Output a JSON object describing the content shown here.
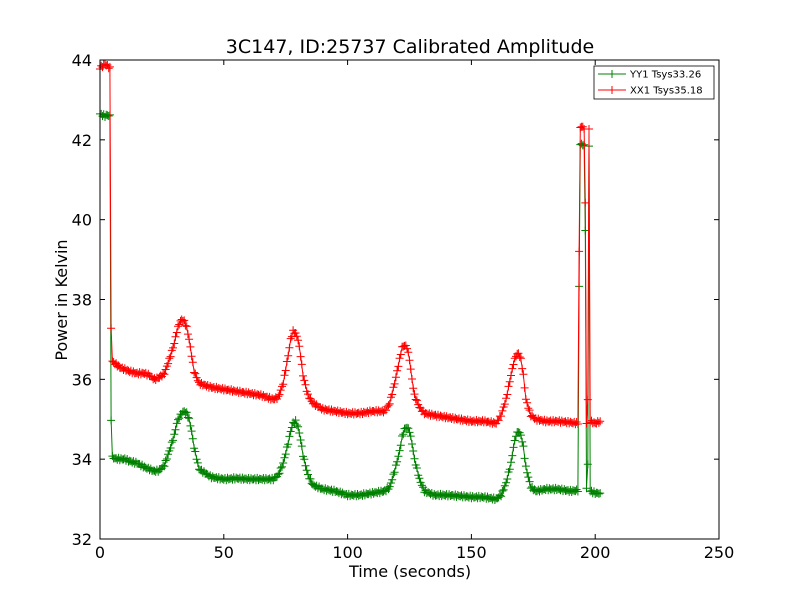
{
  "chart_data": {
    "type": "line",
    "title": "3C147, ID:25737 Calibrated Amplitude",
    "xlabel": "Time (seconds)",
    "ylabel": "Power in Kelvin",
    "xlim": [
      0,
      250
    ],
    "ylim": [
      32,
      44
    ],
    "xticks": [
      0,
      50,
      100,
      150,
      200,
      250
    ],
    "yticks": [
      32,
      34,
      36,
      38,
      40,
      42,
      44
    ],
    "grid": false,
    "legend_position": "top-right",
    "marker": "+",
    "series": [
      {
        "name": "YY1 Tsys33.26",
        "color": "#008000",
        "x": [
          0,
          1,
          2,
          3,
          4,
          4.5,
          5,
          6,
          8,
          10,
          12,
          15,
          18,
          20,
          22,
          24,
          26,
          28,
          30,
          31,
          32,
          33,
          34,
          35,
          36,
          37,
          38,
          40,
          45,
          50,
          55,
          60,
          65,
          70,
          72,
          74,
          76,
          77,
          78,
          79,
          80,
          81,
          82,
          84,
          86,
          90,
          95,
          100,
          105,
          110,
          115,
          117,
          119,
          121,
          122,
          123,
          124,
          125,
          126,
          127,
          129,
          131,
          135,
          140,
          145,
          150,
          155,
          160,
          162,
          164,
          166,
          167,
          168,
          169,
          170,
          171,
          172,
          174,
          176,
          180,
          185,
          190,
          193,
          193.5,
          194,
          194.5,
          195,
          195.5,
          196,
          196.5,
          197,
          197.5,
          198,
          200,
          202
        ],
        "y": [
          42.65,
          42.62,
          42.6,
          42.62,
          42.6,
          35.0,
          34.05,
          34.02,
          34.0,
          34.0,
          33.95,
          33.9,
          33.8,
          33.75,
          33.7,
          33.72,
          33.85,
          34.2,
          34.6,
          34.9,
          35.05,
          35.15,
          35.2,
          35.15,
          35.0,
          34.7,
          34.3,
          33.75,
          33.55,
          33.5,
          33.52,
          33.5,
          33.5,
          33.5,
          33.6,
          33.9,
          34.4,
          34.7,
          34.9,
          34.95,
          34.8,
          34.5,
          34.1,
          33.6,
          33.35,
          33.25,
          33.2,
          33.1,
          33.1,
          33.15,
          33.2,
          33.3,
          33.7,
          34.2,
          34.55,
          34.75,
          34.8,
          34.7,
          34.4,
          34.0,
          33.5,
          33.2,
          33.1,
          33.1,
          33.08,
          33.05,
          33.05,
          33.0,
          33.1,
          33.4,
          33.9,
          34.3,
          34.6,
          34.7,
          34.6,
          34.3,
          33.8,
          33.3,
          33.2,
          33.25,
          33.25,
          33.2,
          33.22,
          38.3,
          41.9,
          41.9,
          41.85,
          41.9,
          39.7,
          33.3,
          33.85,
          41.85,
          33.2,
          33.15,
          33.15
        ]
      },
      {
        "name": "XX1 Tsys35.18",
        "color": "#ff0000",
        "x": [
          0,
          1,
          2,
          3,
          4,
          4.5,
          5,
          6,
          8,
          10,
          12,
          15,
          18,
          20,
          22,
          24,
          26,
          28,
          30,
          31,
          32,
          33,
          34,
          35,
          36,
          37,
          38,
          40,
          45,
          50,
          55,
          60,
          65,
          70,
          72,
          74,
          76,
          77,
          78,
          79,
          80,
          81,
          82,
          84,
          86,
          90,
          95,
          100,
          105,
          110,
          115,
          117,
          119,
          121,
          122,
          123,
          124,
          125,
          126,
          127,
          129,
          131,
          135,
          140,
          145,
          150,
          155,
          160,
          162,
          164,
          166,
          167,
          168,
          169,
          170,
          171,
          172,
          174,
          176,
          180,
          185,
          190,
          193,
          193.5,
          194,
          194.5,
          195,
          195.5,
          196,
          196.5,
          197,
          197.5,
          198,
          200,
          202
        ],
        "y": [
          43.8,
          43.85,
          43.9,
          43.85,
          43.8,
          37.3,
          36.45,
          36.4,
          36.3,
          36.25,
          36.2,
          36.15,
          36.15,
          36.1,
          36.0,
          36.05,
          36.15,
          36.5,
          36.9,
          37.2,
          37.4,
          37.5,
          37.45,
          37.3,
          37.0,
          36.6,
          36.2,
          35.9,
          35.8,
          35.75,
          35.7,
          35.65,
          35.6,
          35.5,
          35.55,
          35.9,
          36.6,
          37.0,
          37.2,
          37.15,
          37.0,
          36.6,
          36.1,
          35.6,
          35.4,
          35.25,
          35.2,
          35.15,
          35.15,
          35.2,
          35.2,
          35.4,
          35.9,
          36.5,
          36.8,
          36.85,
          36.8,
          36.5,
          36.0,
          35.6,
          35.3,
          35.15,
          35.1,
          35.05,
          35.0,
          34.95,
          34.95,
          34.9,
          35.1,
          35.5,
          36.1,
          36.4,
          36.6,
          36.65,
          36.5,
          36.1,
          35.5,
          35.1,
          35.0,
          34.95,
          34.95,
          34.92,
          34.9,
          39.2,
          42.3,
          42.35,
          42.3,
          42.3,
          40.4,
          34.9,
          35.5,
          42.25,
          34.95,
          34.9,
          34.95
        ]
      }
    ]
  }
}
